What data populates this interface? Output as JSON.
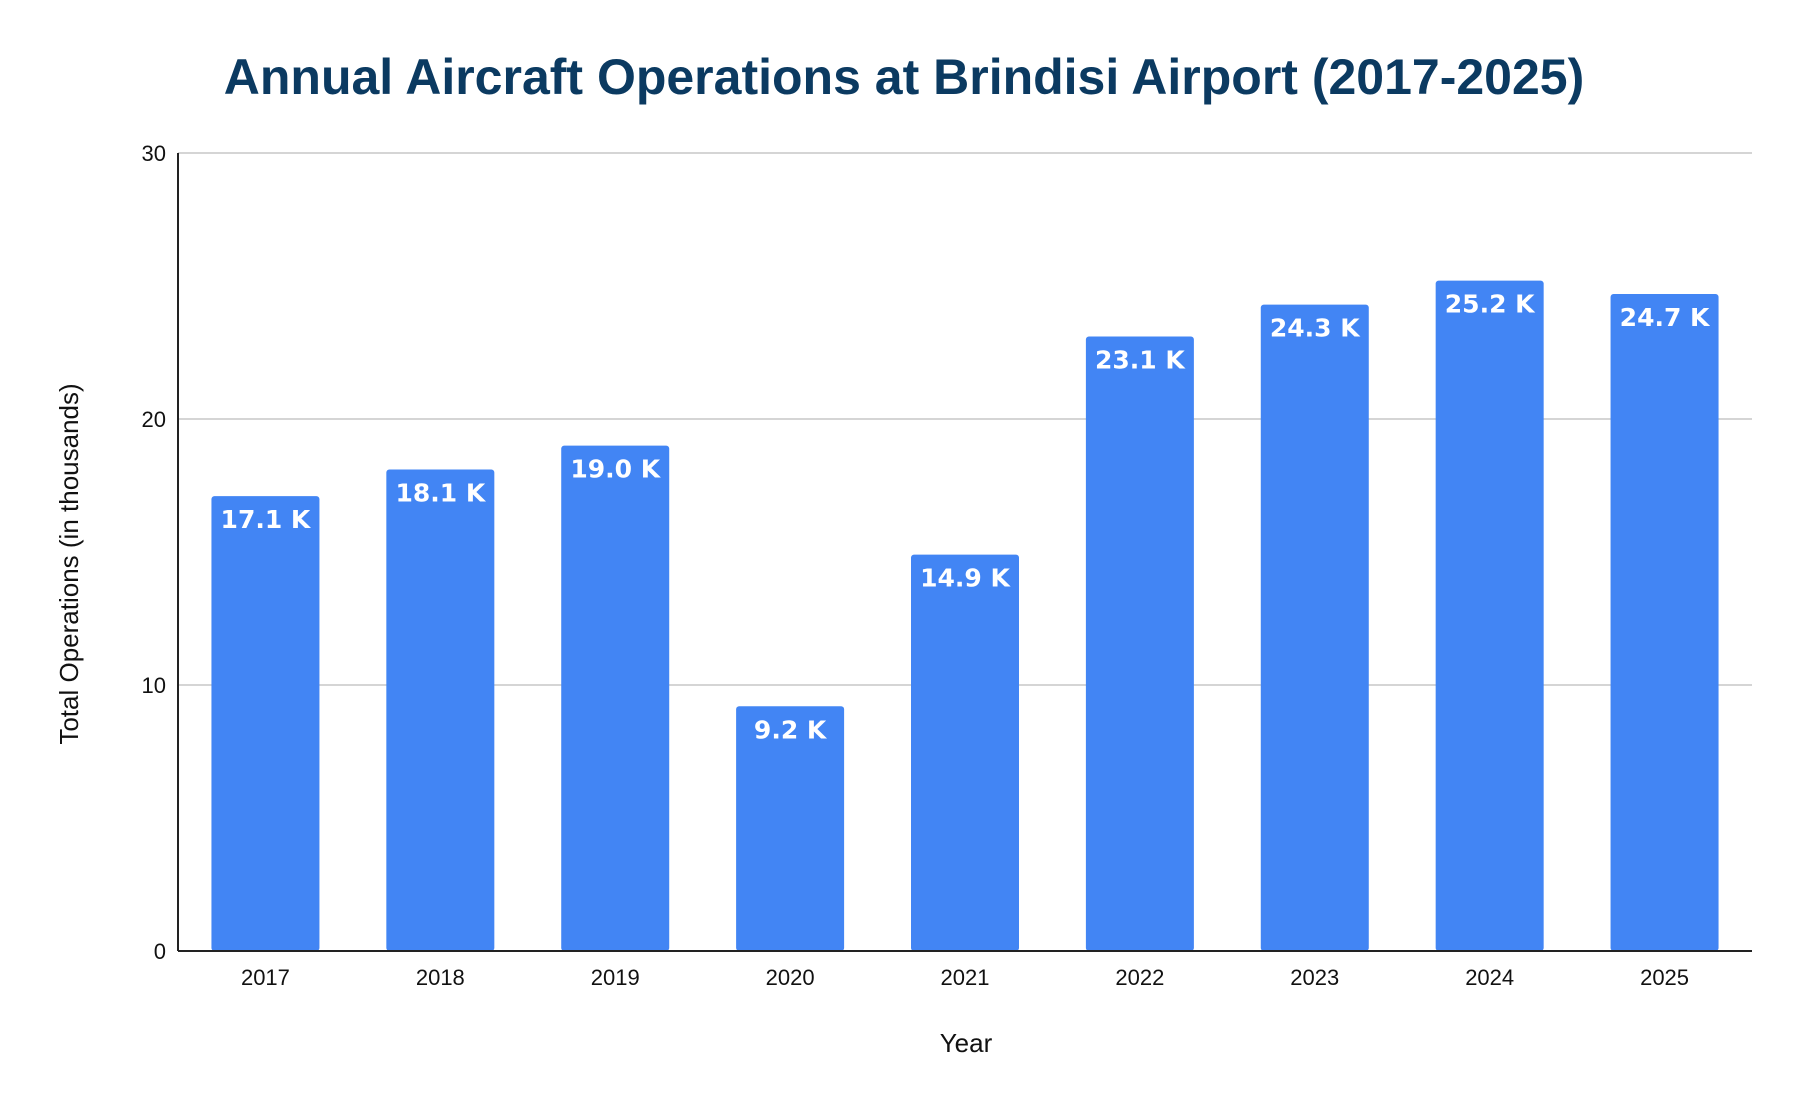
{
  "chart_data": {
    "type": "bar",
    "title": "Annual Aircraft Operations at Brindisi Airport (2017-2025)",
    "xlabel": "Year",
    "ylabel": "Total Operations (in thousands)",
    "categories": [
      "2017",
      "2018",
      "2019",
      "2020",
      "2021",
      "2022",
      "2023",
      "2024",
      "2025"
    ],
    "values": [
      17.1,
      18.1,
      19.0,
      9.2,
      14.9,
      23.1,
      24.3,
      25.2,
      24.7
    ],
    "data_labels": [
      "17.1 K",
      "18.1 K",
      "19.0 K",
      "9.2 K",
      "14.9 K",
      "23.1 K",
      "24.3 K",
      "25.2 K",
      "24.7 K"
    ],
    "ylim": [
      0,
      30
    ],
    "yticks": [
      0,
      10,
      20,
      30
    ],
    "grid": true,
    "legend": "none",
    "bar_color": "#4285f4",
    "title_color": "#0b3a61"
  }
}
